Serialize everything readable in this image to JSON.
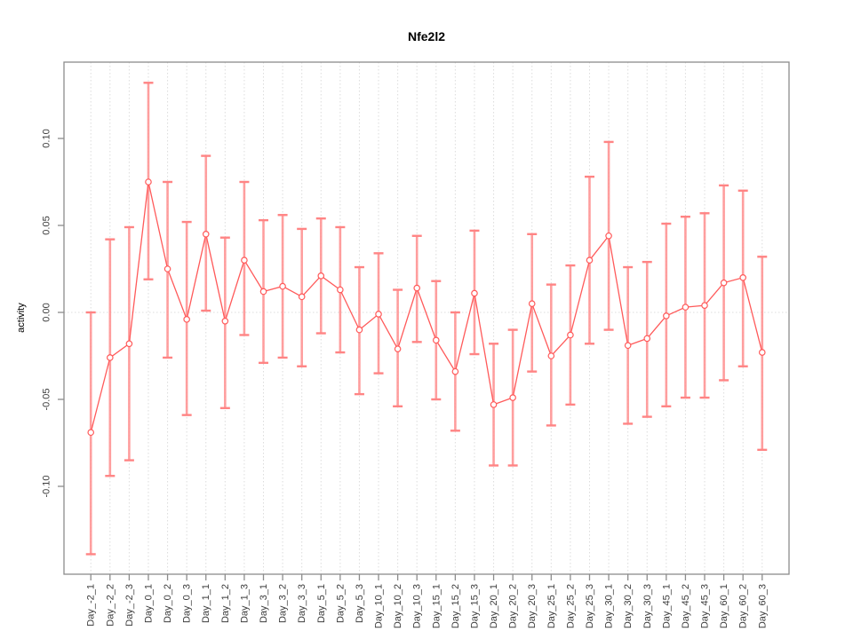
{
  "colors": {
    "background": "#ffffff",
    "series_line": "#ff5a5a",
    "point_stroke": "#ff5a5a",
    "point_fill": "#ffffff",
    "ci_bar": "#ff9595",
    "ci_cap": "#ff8484",
    "grid": "#dcdcdc",
    "axis": "#8c8c8c",
    "tick_text": "#3c3c3c",
    "title_text": "#000000"
  },
  "chart_data": {
    "type": "line",
    "title": "Nfe2l2",
    "xlabel": "",
    "ylabel": "activity",
    "ylim": [
      -0.15,
      0.143
    ],
    "grid": "vertical dotted gridline at every category; dotted horizontal reference line at 0.00",
    "legend": "none",
    "marker": "open-circle",
    "error_bars": "symmetric confidence intervals with end caps",
    "yticks": {
      "values": [
        -0.1,
        -0.05,
        0.0,
        0.05,
        0.1
      ],
      "labels": [
        "-0.10",
        "-0.05",
        "0.00",
        "0.05",
        "0.10"
      ]
    },
    "categories": [
      "Day_-2_1",
      "Day_-2_2",
      "Day_-2_3",
      "Day_0_1",
      "Day_0_2",
      "Day_0_3",
      "Day_1_1",
      "Day_1_2",
      "Day_1_3",
      "Day_3_1",
      "Day_3_2",
      "Day_3_3",
      "Day_5_1",
      "Day_5_2",
      "Day_5_3",
      "Day_10_1",
      "Day_10_2",
      "Day_10_3",
      "Day_15_1",
      "Day_15_2",
      "Day_15_3",
      "Day_20_1",
      "Day_20_2",
      "Day_20_3",
      "Day_25_1",
      "Day_25_2",
      "Day_25_3",
      "Day_30_1",
      "Day_30_2",
      "Day_30_3",
      "Day_45_1",
      "Day_45_2",
      "Day_45_3",
      "Day_60_1",
      "Day_60_2",
      "Day_60_3"
    ],
    "series": [
      {
        "name": "activity",
        "values": [
          -0.069,
          -0.026,
          -0.018,
          0.075,
          0.025,
          -0.004,
          0.045,
          -0.005,
          0.03,
          0.012,
          0.015,
          0.009,
          0.021,
          0.013,
          -0.01,
          -0.001,
          -0.021,
          0.014,
          -0.016,
          -0.034,
          0.011,
          -0.053,
          -0.049,
          0.005,
          -0.025,
          -0.013,
          0.03,
          0.044,
          -0.019,
          -0.015,
          -0.002,
          0.003,
          0.004,
          0.017,
          0.02,
          -0.023
        ],
        "ci_lower": [
          -0.139,
          -0.094,
          -0.085,
          0.019,
          -0.026,
          -0.059,
          0.001,
          -0.055,
          -0.013,
          -0.029,
          -0.026,
          -0.031,
          -0.012,
          -0.023,
          -0.047,
          -0.035,
          -0.054,
          -0.017,
          -0.05,
          -0.068,
          -0.024,
          -0.088,
          -0.088,
          -0.034,
          -0.065,
          -0.053,
          -0.018,
          -0.01,
          -0.064,
          -0.06,
          -0.054,
          -0.049,
          -0.049,
          -0.039,
          -0.031,
          -0.079
        ],
        "ci_upper": [
          0.0,
          0.042,
          0.049,
          0.132,
          0.075,
          0.052,
          0.09,
          0.043,
          0.075,
          0.053,
          0.056,
          0.048,
          0.054,
          0.049,
          0.026,
          0.034,
          0.013,
          0.044,
          0.018,
          0.0,
          0.047,
          -0.018,
          -0.01,
          0.045,
          0.016,
          0.027,
          0.078,
          0.098,
          0.026,
          0.029,
          0.051,
          0.055,
          0.057,
          0.073,
          0.07,
          0.032
        ]
      }
    ]
  }
}
